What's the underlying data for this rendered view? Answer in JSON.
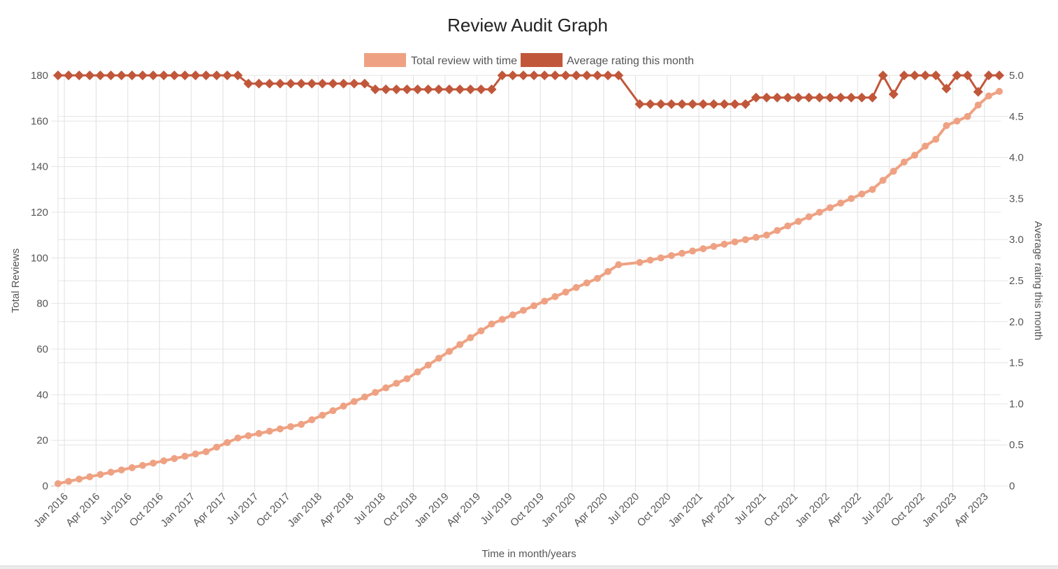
{
  "chart_data": {
    "type": "line",
    "title": "Review Audit Graph",
    "xlabel": "Time in month/years",
    "ylabel": "Total Reviews",
    "y2label": "Average rating this month",
    "ylim": [
      0,
      180
    ],
    "y2lim": [
      0,
      5.0
    ],
    "yticks": [
      "0",
      "20",
      "40",
      "60",
      "80",
      "100",
      "120",
      "140",
      "160",
      "180"
    ],
    "y2ticks": [
      "0",
      "0.5",
      "1.0",
      "1.5",
      "2.0",
      "2.5",
      "3.0",
      "3.5",
      "4.0",
      "4.5",
      "5.0"
    ],
    "grid": true,
    "legend_position": "top",
    "start_month": "Jan 2016",
    "xtick_labels": [
      "Jan 2016",
      "Apr 2016",
      "Jul 2016",
      "Oct 2016",
      "Jan 2017",
      "Apr 2017",
      "Jul 2017",
      "Oct 2017",
      "Jan 2018",
      "Apr 2018",
      "Jul 2018",
      "Oct 2018",
      "Jan 2019",
      "Apr 2019",
      "Jul 2019",
      "Oct 2019",
      "Jan 2020",
      "Apr 2020",
      "Jul 2020",
      "Oct 2020",
      "Jan 2021",
      "Apr 2021",
      "Jul 2021",
      "Oct 2021",
      "Jan 2022",
      "Apr 2022",
      "Jul 2022",
      "Oct 2022",
      "Jan 2023",
      "Apr 2023"
    ],
    "month_index": [
      0,
      1,
      2,
      3,
      4,
      5,
      6,
      7,
      8,
      9,
      10,
      11,
      12,
      13,
      14,
      15,
      16,
      17,
      18,
      19,
      20,
      21,
      22,
      23,
      24,
      25,
      26,
      27,
      28,
      29,
      30,
      31,
      32,
      33,
      34,
      35,
      36,
      37,
      38,
      39,
      40,
      41,
      42,
      43,
      44,
      45,
      46,
      47,
      48,
      49,
      50,
      51,
      52,
      53,
      55,
      56,
      57,
      58,
      59,
      60,
      61,
      62,
      63,
      64,
      65,
      66,
      67,
      68,
      69,
      70,
      71,
      72,
      73,
      74,
      75,
      76,
      77,
      78,
      79,
      80,
      81,
      82,
      83,
      84,
      85,
      86,
      87,
      88,
      89
    ],
    "series": [
      {
        "name": "Total review with time",
        "axis": "left",
        "color": "#eea283",
        "marker": "circle",
        "values": [
          1,
          2,
          3,
          4,
          5,
          6,
          7,
          8,
          9,
          10,
          11,
          12,
          13,
          14,
          15,
          17,
          19,
          21,
          22,
          23,
          24,
          25,
          26,
          27,
          29,
          31,
          33,
          35,
          37,
          39,
          41,
          43,
          45,
          47,
          50,
          53,
          56,
          59,
          62,
          65,
          68,
          71,
          73,
          75,
          77,
          79,
          81,
          83,
          85,
          87,
          89,
          91,
          94,
          97,
          98,
          99,
          100,
          101,
          102,
          103,
          104,
          105,
          106,
          107,
          108,
          109,
          110,
          112,
          114,
          116,
          118,
          120,
          122,
          124,
          126,
          128,
          130,
          134,
          138,
          142,
          145,
          149,
          152,
          158,
          160,
          162,
          167,
          171,
          173
        ]
      },
      {
        "name": "Average rating this month",
        "axis": "right",
        "color": "#c1573a",
        "marker": "diamond",
        "values": [
          5,
          5,
          5,
          5,
          5,
          5,
          5,
          5,
          5,
          5,
          5,
          5,
          5,
          5,
          5,
          5,
          5,
          5,
          4.9,
          4.9,
          4.9,
          4.9,
          4.9,
          4.9,
          4.9,
          4.9,
          4.9,
          4.9,
          4.9,
          4.9,
          4.83,
          4.83,
          4.83,
          4.83,
          4.83,
          4.83,
          4.83,
          4.83,
          4.83,
          4.83,
          4.83,
          4.83,
          5,
          5,
          5,
          5,
          5,
          5,
          5,
          5,
          5,
          5,
          5,
          5,
          4.65,
          4.65,
          4.65,
          4.65,
          4.65,
          4.65,
          4.65,
          4.65,
          4.65,
          4.65,
          4.65,
          4.73,
          4.73,
          4.73,
          4.73,
          4.73,
          4.73,
          4.73,
          4.73,
          4.73,
          4.73,
          4.73,
          4.73,
          5,
          4.77,
          5,
          5,
          5,
          5,
          4.84,
          5,
          5,
          4.8,
          5,
          5
        ]
      }
    ]
  }
}
